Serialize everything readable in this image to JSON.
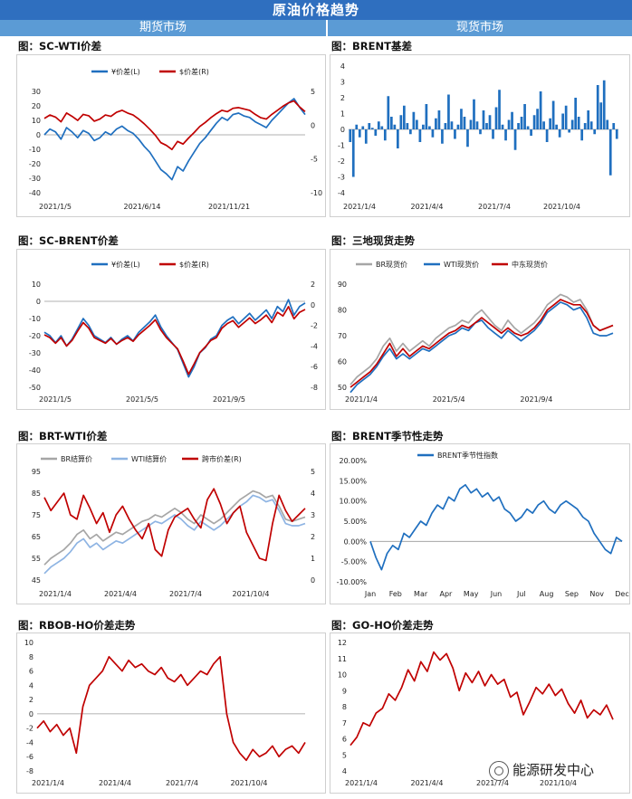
{
  "header": {
    "title": "原油价格趋势",
    "futures": "期货市场",
    "spot": "现货市场"
  },
  "watermark": "能源研发中心",
  "colors": {
    "blue": "#1f6fbf",
    "red": "#c00000",
    "gray": "#a6a6a6",
    "lightblue": "#8eb4e3",
    "banner": "#2f6fbf",
    "subhead": "#5b9bd5"
  },
  "chart_data": [
    {
      "id": "sc-wti",
      "type": "line",
      "title": "图：SC-WTI价差",
      "legend": [
        "¥价差(L)",
        "$价差(R)"
      ],
      "left_ticks": [
        "30",
        "20",
        "10",
        "0",
        "-10",
        "-20",
        "-30",
        "-40"
      ],
      "right_ticks": [
        "5",
        "0",
        "-5",
        "-10"
      ],
      "xticks": [
        "2021/1/5",
        "2021/6/14",
        "2021/11/21"
      ],
      "ylim": [
        -40,
        30
      ],
      "y2lim": [
        -10,
        5
      ],
      "series": [
        {
          "name": "¥价差(L)",
          "axis": "left",
          "color": "#1f6fbf",
          "values": [
            0,
            4,
            2,
            -3,
            5,
            2,
            -2,
            3,
            1,
            -4,
            -2,
            2,
            0,
            4,
            6,
            3,
            1,
            -3,
            -8,
            -12,
            -18,
            -24,
            -27,
            -31,
            -22,
            -25,
            -18,
            -12,
            -6,
            -2,
            3,
            8,
            12,
            10,
            14,
            15,
            13,
            12,
            9,
            7,
            5,
            10,
            14,
            18,
            22,
            25,
            19,
            14
          ]
        },
        {
          "name": "$价差(R)",
          "axis": "right",
          "color": "#c00000",
          "values": [
            1.0,
            1.5,
            1.2,
            0.5,
            1.8,
            1.3,
            0.7,
            1.6,
            1.4,
            0.6,
            0.9,
            1.5,
            1.3,
            1.9,
            2.2,
            1.8,
            1.5,
            0.9,
            0.2,
            -0.6,
            -1.5,
            -2.6,
            -3.0,
            -3.6,
            -2.4,
            -2.8,
            -1.9,
            -1.1,
            -0.2,
            0.4,
            1.1,
            1.7,
            2.2,
            2.0,
            2.5,
            2.6,
            2.4,
            2.2,
            1.6,
            1.1,
            0.9,
            1.6,
            2.2,
            2.8,
            3.3,
            3.6,
            2.7,
            2.0
          ]
        }
      ]
    },
    {
      "id": "brent-basis",
      "type": "bar",
      "title": "图：BRENT基差",
      "left_ticks": [
        "4",
        "3",
        "2",
        "1",
        "0",
        "-1",
        "-2",
        "-3",
        "-4"
      ],
      "xticks": [
        "2021/1/4",
        "2021/4/4",
        "2021/7/4",
        "2021/10/4"
      ],
      "ylim": [
        -4,
        4
      ],
      "values": [
        -0.8,
        -3.0,
        0.3,
        -0.5,
        0.2,
        -0.9,
        0.4,
        0.1,
        -0.4,
        0.5,
        0.2,
        -0.7,
        2.1,
        0.8,
        0.3,
        -1.2,
        0.9,
        1.5,
        0.4,
        -0.3,
        1.1,
        0.6,
        -0.8,
        0.3,
        1.6,
        0.2,
        -0.5,
        0.7,
        1.2,
        -0.9,
        0.4,
        2.2,
        0.5,
        -0.6,
        0.3,
        1.3,
        0.8,
        -1.1,
        0.6,
        1.9,
        0.5,
        -0.3,
        1.2,
        0.4,
        0.9,
        -0.6,
        1.4,
        2.5,
        0.3,
        -0.7,
        0.6,
        1.1,
        -1.3,
        0.4,
        0.8,
        1.6,
        0.2,
        -0.4,
        0.9,
        1.3,
        2.4,
        0.5,
        -0.8,
        0.7,
        1.8,
        0.3,
        -0.5,
        1.0,
        1.5,
        -0.2,
        0.6,
        2.0,
        0.8,
        -0.7,
        0.4,
        1.2,
        0.5,
        -0.3,
        2.8,
        1.7,
        3.1,
        0.6,
        -2.9,
        0.4,
        -0.6
      ],
      "color": "#1f6fbf"
    },
    {
      "id": "sc-brent",
      "type": "line",
      "title": "图：SC-BRENT价差",
      "legend": [
        "¥价差(L)",
        "$价差(R)"
      ],
      "left_ticks": [
        "10",
        "0",
        "-10",
        "-20",
        "-30",
        "-40",
        "-50"
      ],
      "right_ticks": [
        "2",
        "0",
        "-2",
        "-4",
        "-6",
        "-8"
      ],
      "xticks": [
        "2021/1/5",
        "2021/5/5",
        "2021/9/5"
      ],
      "ylim": [
        -50,
        10
      ],
      "y2lim": [
        -8.5,
        2.5
      ],
      "series": [
        {
          "name": "¥价差(L)",
          "axis": "left",
          "color": "#1f6fbf",
          "values": [
            -18,
            -20,
            -24,
            -20,
            -26,
            -22,
            -16,
            -10,
            -14,
            -20,
            -22,
            -24,
            -21,
            -25,
            -22,
            -20,
            -23,
            -18,
            -15,
            -12,
            -8,
            -15,
            -20,
            -24,
            -28,
            -36,
            -44,
            -38,
            -30,
            -27,
            -22,
            -20,
            -14,
            -11,
            -9,
            -13,
            -10,
            -7,
            -11,
            -8,
            -5,
            -10,
            -3,
            -6,
            1,
            -8,
            -3,
            -1
          ]
        },
        {
          "name": "$价差(R)",
          "axis": "right",
          "color": "#c00000",
          "values": [
            -2.9,
            -3.2,
            -3.8,
            -3.2,
            -4.1,
            -3.5,
            -2.5,
            -1.6,
            -2.2,
            -3.2,
            -3.5,
            -3.8,
            -3.3,
            -3.9,
            -3.5,
            -3.2,
            -3.6,
            -2.9,
            -2.4,
            -1.9,
            -1.3,
            -2.4,
            -3.2,
            -3.8,
            -4.4,
            -5.7,
            -7.1,
            -6.0,
            -4.8,
            -4.2,
            -3.5,
            -3.2,
            -2.2,
            -1.7,
            -1.4,
            -2.1,
            -1.6,
            -1.1,
            -1.7,
            -1.3,
            -0.8,
            -1.6,
            -0.5,
            -0.9,
            0.1,
            -1.2,
            -0.5,
            -0.2
          ]
        }
      ]
    },
    {
      "id": "three-spot",
      "type": "line",
      "title": "图：三地现货走势",
      "legend": [
        "BR现货价",
        "WTI现货价",
        "中东现货价"
      ],
      "left_ticks": [
        "90",
        "80",
        "70",
        "60",
        "50"
      ],
      "xticks": [
        "2021/1/4",
        "2021/5/4",
        "2021/9/4"
      ],
      "ylim": [
        50,
        90
      ],
      "series": [
        {
          "name": "BR现货价",
          "axis": "left",
          "color": "#a6a6a6",
          "values": [
            51,
            54,
            56,
            58,
            61,
            66,
            69,
            64,
            67,
            64,
            66,
            68,
            66,
            69,
            71,
            73,
            74,
            76,
            75,
            78,
            80,
            77,
            74,
            72,
            76,
            73,
            71,
            73,
            75,
            78,
            82,
            84,
            86,
            85,
            83,
            84,
            80,
            74,
            72,
            73,
            74
          ]
        },
        {
          "name": "WTI现货价",
          "axis": "left",
          "color": "#1f6fbf",
          "values": [
            48,
            51,
            53,
            55,
            58,
            62,
            65,
            61,
            63,
            61,
            63,
            65,
            64,
            66,
            68,
            70,
            71,
            73,
            72,
            75,
            76,
            73,
            71,
            69,
            72,
            70,
            68,
            70,
            72,
            75,
            79,
            81,
            83,
            82,
            80,
            81,
            77,
            71,
            70,
            70,
            71
          ]
        },
        {
          "name": "中东现货价",
          "axis": "left",
          "color": "#c00000",
          "values": [
            50,
            52,
            54,
            56,
            59,
            63,
            67,
            62,
            65,
            62,
            64,
            66,
            65,
            67,
            69,
            71,
            72,
            74,
            73,
            75,
            77,
            75,
            73,
            71,
            73,
            71,
            70,
            71,
            73,
            76,
            80,
            82,
            84,
            83,
            82,
            82,
            79,
            74,
            72,
            73,
            74
          ]
        }
      ]
    },
    {
      "id": "brt-wti",
      "type": "line",
      "title": "图：BRT-WTI价差",
      "legend": [
        "BR结算价",
        "WTI结算价",
        "跨市价差(R)"
      ],
      "left_ticks": [
        "95",
        "85",
        "75",
        "65",
        "55",
        "45"
      ],
      "right_ticks": [
        "5",
        "4",
        "3",
        "2",
        "1",
        "0"
      ],
      "xticks": [
        "2021/1/4",
        "2021/4/4",
        "2021/7/4",
        "2021/10/4"
      ],
      "ylim": [
        45,
        95
      ],
      "y2lim": [
        0,
        5
      ],
      "series": [
        {
          "name": "BR结算价",
          "axis": "left",
          "color": "#a6a6a6",
          "values": [
            52,
            55,
            57,
            59,
            62,
            66,
            68,
            64,
            66,
            63,
            65,
            67,
            66,
            68,
            70,
            72,
            73,
            75,
            74,
            76,
            78,
            76,
            73,
            71,
            75,
            73,
            71,
            73,
            76,
            79,
            82,
            84,
            86,
            85,
            83,
            84,
            79,
            73,
            72,
            73,
            74
          ]
        },
        {
          "name": "WTI结算价",
          "axis": "left",
          "color": "#8eb4e3",
          "values": [
            48,
            51,
            53,
            55,
            58,
            62,
            64,
            60,
            62,
            59,
            61,
            63,
            62,
            64,
            66,
            68,
            70,
            72,
            71,
            73,
            75,
            73,
            70,
            68,
            72,
            70,
            68,
            70,
            73,
            76,
            79,
            81,
            84,
            83,
            81,
            82,
            77,
            71,
            70,
            70,
            71
          ]
        },
        {
          "name": "跨市价差(R)",
          "axis": "right",
          "color": "#c00000",
          "values": [
            3.8,
            3.2,
            3.6,
            4.0,
            3.0,
            2.8,
            3.9,
            3.3,
            2.6,
            3.1,
            2.2,
            3.0,
            3.4,
            2.8,
            2.3,
            1.9,
            2.6,
            1.4,
            1.1,
            2.3,
            2.9,
            3.1,
            3.3,
            2.8,
            2.4,
            3.7,
            4.2,
            3.5,
            2.6,
            3.1,
            3.4,
            2.2,
            1.6,
            1.0,
            0.9,
            2.6,
            3.9,
            3.2,
            2.7,
            3.0,
            3.3
          ]
        }
      ]
    },
    {
      "id": "brent-seasonal",
      "type": "line",
      "title": "图：BRENT季节性走势",
      "legend": [
        "BRENT季节性指数"
      ],
      "left_ticks": [
        "20.00%",
        "15.00%",
        "10.00%",
        "5.00%",
        "0.00%",
        "-5.00%",
        "-10.00%"
      ],
      "xticks": [
        "Jan",
        "Feb",
        "Mar",
        "Apr",
        "May",
        "Jun",
        "Jul",
        "Aug",
        "Sep",
        "Nov",
        "Dec"
      ],
      "ylim": [
        -10,
        20
      ],
      "series": [
        {
          "name": "BRENT季节性指数",
          "axis": "left",
          "color": "#1f6fbf",
          "values": [
            0,
            -4,
            -7,
            -3,
            -1,
            -2,
            2,
            1,
            3,
            5,
            4,
            7,
            9,
            8,
            11,
            10,
            13,
            14,
            12,
            13,
            11,
            12,
            10,
            11,
            8,
            7,
            5,
            6,
            8,
            7,
            9,
            10,
            8,
            7,
            9,
            10,
            9,
            8,
            6,
            5,
            2,
            0,
            -2,
            -3,
            1,
            0
          ]
        }
      ]
    },
    {
      "id": "rbob-ho",
      "type": "line",
      "title": "图：RBOB-HO价差走势",
      "left_ticks": [
        "10",
        "8",
        "6",
        "4",
        "2",
        "0",
        "-2",
        "-4",
        "-6",
        "-8"
      ],
      "xticks": [
        "2021/1/4",
        "2021/4/4",
        "2021/7/4",
        "2021/10/4"
      ],
      "ylim": [
        -8,
        10
      ],
      "series": [
        {
          "name": "RBOB-HO",
          "axis": "left",
          "color": "#c00000",
          "values": [
            -2,
            -1,
            -2.5,
            -1.5,
            -3,
            -2,
            -5.5,
            1,
            4,
            5,
            6,
            8,
            7,
            6,
            7.5,
            6.5,
            7,
            6,
            5.5,
            6.5,
            5,
            4.5,
            5.5,
            4,
            5,
            6,
            5.5,
            7,
            8,
            0,
            -4,
            -5.5,
            -6.5,
            -5,
            -6,
            -5.5,
            -4.5,
            -6,
            -5,
            -4.5,
            -5.5,
            -4
          ]
        }
      ]
    },
    {
      "id": "go-ho",
      "type": "line",
      "title": "图：GO-HO价差走势",
      "left_ticks": [
        "12",
        "11",
        "10",
        "9",
        "8",
        "7",
        "6",
        "5",
        "4"
      ],
      "xticks": [
        "2021/1/4",
        "2021/4/4",
        "2021/7/4",
        "2021/10/4"
      ],
      "ylim": [
        4,
        12
      ],
      "series": [
        {
          "name": "GO-HO",
          "axis": "left",
          "color": "#c00000",
          "values": [
            5.6,
            6.1,
            7.0,
            6.8,
            7.6,
            7.9,
            8.8,
            8.4,
            9.2,
            10.3,
            9.6,
            10.8,
            10.2,
            11.4,
            10.9,
            11.3,
            10.4,
            9.0,
            10.1,
            9.5,
            10.2,
            9.3,
            10.0,
            9.4,
            9.7,
            8.6,
            8.9,
            7.5,
            8.3,
            9.2,
            8.8,
            9.4,
            8.7,
            9.1,
            8.2,
            7.6,
            8.4,
            7.3,
            7.8,
            7.5,
            8.1,
            7.2
          ]
        }
      ]
    }
  ]
}
